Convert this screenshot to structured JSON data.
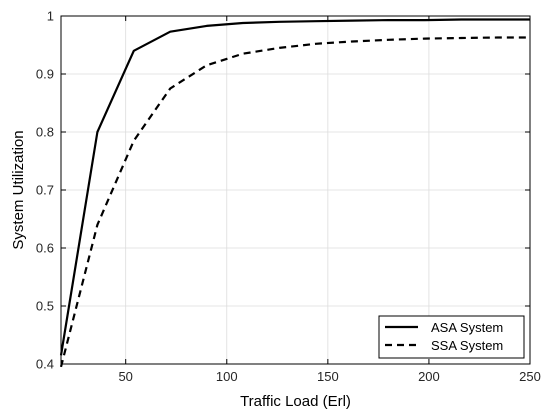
{
  "chart_data": {
    "type": "line",
    "xlabel": "Traffic Load (Erl)",
    "ylabel": "System Utilization",
    "xlim": [
      18,
      250
    ],
    "ylim": [
      0.4,
      1
    ],
    "xticks": [
      50,
      100,
      150,
      200,
      250
    ],
    "xtick_labels": [
      "50",
      "100",
      "150",
      "200",
      "250"
    ],
    "yticks": [
      0.4,
      0.5,
      0.6,
      0.7,
      0.8,
      0.9,
      1
    ],
    "ytick_labels": [
      "0.4",
      "0.5",
      "0.6",
      "0.7",
      "0.8",
      "0.9",
      "1"
    ],
    "grid": true,
    "legend_position": "bottom-right",
    "series": [
      {
        "name": "ASA System",
        "color": "#000000",
        "style": "solid",
        "x": [
          18,
          36,
          54,
          72,
          90,
          108,
          126,
          144,
          162,
          180,
          198,
          216,
          234,
          250
        ],
        "y": [
          0.415,
          0.8,
          0.94,
          0.973,
          0.983,
          0.988,
          0.99,
          0.991,
          0.992,
          0.993,
          0.993,
          0.994,
          0.994,
          0.994
        ]
      },
      {
        "name": "SSA System",
        "color": "#000000",
        "style": "dashed",
        "x": [
          18,
          36,
          54,
          72,
          90,
          108,
          126,
          144,
          162,
          180,
          198,
          216,
          234,
          250
        ],
        "y": [
          0.395,
          0.64,
          0.785,
          0.875,
          0.915,
          0.935,
          0.945,
          0.952,
          0.956,
          0.959,
          0.961,
          0.962,
          0.963,
          0.963
        ]
      }
    ]
  }
}
